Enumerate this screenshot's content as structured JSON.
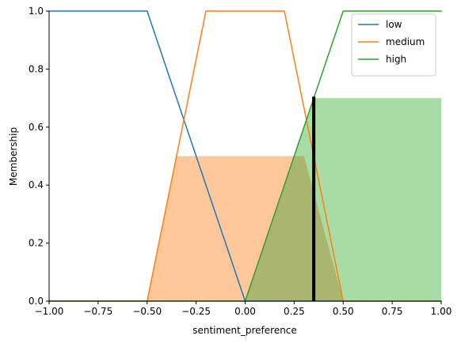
{
  "chart_data": {
    "type": "line",
    "title": "",
    "xlabel": "sentiment_preference",
    "ylabel": "Membership",
    "xlim": [
      -1.0,
      1.0
    ],
    "ylim": [
      0.0,
      1.0
    ],
    "x_ticks": [
      -1.0,
      -0.75,
      -0.5,
      -0.25,
      0.0,
      0.25,
      0.5,
      0.75,
      1.0
    ],
    "x_tick_labels": [
      "−1.00",
      "−0.75",
      "−0.50",
      "−0.25",
      "0.00",
      "0.25",
      "0.50",
      "0.75",
      "1.00"
    ],
    "y_ticks": [
      0.0,
      0.2,
      0.4,
      0.6,
      0.8,
      1.0
    ],
    "y_tick_labels": [
      "0.0",
      "0.2",
      "0.4",
      "0.6",
      "0.8",
      "1.0"
    ],
    "grid": false,
    "legend_position": "top-right",
    "series": [
      {
        "name": "low",
        "color": "#1f77b4",
        "x": [
          -1.0,
          -0.5,
          0.0,
          1.0
        ],
        "y": [
          1.0,
          1.0,
          0.0,
          0.0
        ]
      },
      {
        "name": "medium",
        "color": "#ff7f0e",
        "x": [
          -1.0,
          -0.5,
          -0.2,
          0.2,
          0.5,
          1.0
        ],
        "y": [
          0.0,
          0.0,
          1.0,
          1.0,
          0.0,
          0.0
        ]
      },
      {
        "name": "high",
        "color": "#2ca02c",
        "x": [
          -1.0,
          0.0,
          0.5,
          1.0
        ],
        "y": [
          0.0,
          0.0,
          1.0,
          1.0
        ]
      }
    ],
    "activations": [
      {
        "series": "medium",
        "level": 0.5,
        "color": "#ffc89a",
        "x": [
          -0.5,
          -0.35,
          0.3,
          0.5
        ],
        "y": [
          0.0,
          0.5,
          0.5,
          0.0
        ]
      },
      {
        "series": "high",
        "level": 0.7,
        "color": "#a9dba4",
        "x": [
          0.0,
          0.35,
          1.0,
          1.0
        ],
        "y": [
          0.0,
          0.7,
          0.7,
          0.0
        ]
      }
    ],
    "overlap_color": "#aab66f",
    "output_marker": {
      "x": 0.35,
      "y": 0.705,
      "color": "#000000"
    }
  }
}
